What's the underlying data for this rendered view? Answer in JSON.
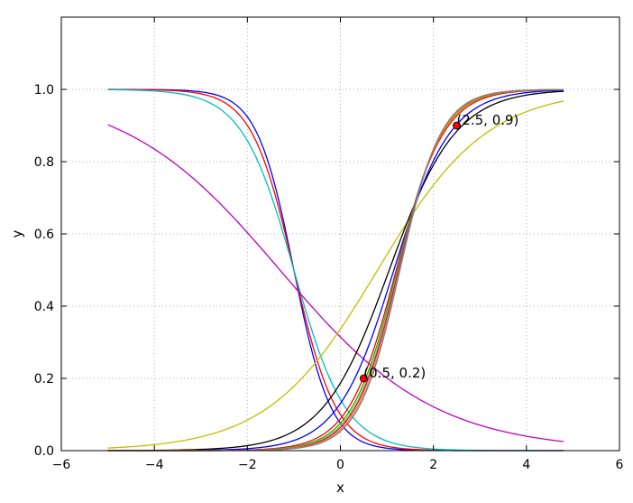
{
  "chart_data": {
    "type": "line",
    "xlabel": "x",
    "ylabel": "y",
    "xlim": [
      -6,
      6
    ],
    "ylim": [
      0,
      1.2
    ],
    "x_ticks": [
      "−6",
      "−4",
      "−2",
      "0",
      "2",
      "4",
      "6"
    ],
    "y_ticks": [
      "0.0",
      "0.2",
      "0.4",
      "0.6",
      "0.8",
      "1.0"
    ],
    "grid": true,
    "x_range": [
      -5,
      4.8
    ],
    "fit_points": [
      [
        0.5,
        0.2
      ],
      [
        2.5,
        0.9
      ]
    ],
    "series": [
      {
        "color": "#0000ff",
        "function": "1/(1+exp(2.5*(x+1)))"
      },
      {
        "color": "#ff0000",
        "function": "1/(1+exp(2.2*(x+1)))"
      },
      {
        "color": "#00bfbf",
        "function": "1/(1+exp(1.8*(x+1)))"
      },
      {
        "color": "#bf00bf",
        "function": "1/(1+exp(0.6*(x+1.3)))"
      },
      {
        "color": "#bfbf00",
        "function": "1/(1+exp(-0.85*(x-0.8)))"
      },
      {
        "color": "#000000",
        "function": "1/(1+exp(-1.4*(x-1.05)))"
      },
      {
        "color": "#0000ff",
        "function": "1/(1+exp(-1.65*(x-1.15)))"
      },
      {
        "color": "#ff0000",
        "function": "1/(1+exp(-1.95*(x-1.2)))"
      },
      {
        "color": "#00bf00",
        "function": "1/(1+exp(-2.05*(x-1.22)))"
      },
      {
        "color": "#bfbf00",
        "function": "1/(1+exp(-2.1*(x-1.24)))"
      },
      {
        "color": "#bf00bf",
        "function": "1/(1+exp(-2.15*(x-1.25)))"
      },
      {
        "color": "#ff8c00",
        "function": "1/(1+exp(-2.2*(x-1.27)))"
      },
      {
        "color": "#808080",
        "function": "1/(1+exp(-2.25*(x-1.28)))"
      }
    ],
    "annotations": [
      {
        "text": "(0.5, 0.2)",
        "x": 0.5,
        "y": 0.2
      },
      {
        "text": "(2.5, 0.9)",
        "x": 2.5,
        "y": 0.9
      }
    ]
  }
}
